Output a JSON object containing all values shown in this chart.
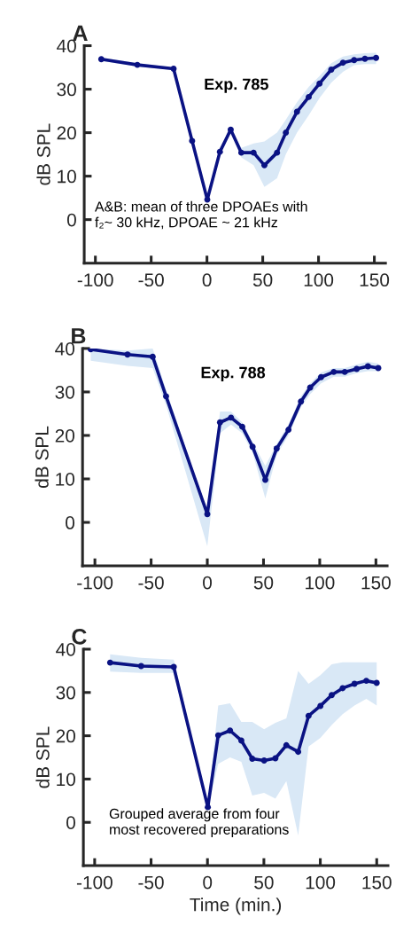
{
  "chart_data": [
    {
      "type": "line",
      "title": "A",
      "ylabel": "dB SPL",
      "xlim": [
        -110,
        160
      ],
      "ylim": [
        -10,
        40
      ],
      "xticks": [
        -100,
        -50,
        0,
        50,
        100,
        150
      ],
      "yticks": [
        0,
        10,
        20,
        30,
        40
      ],
      "grid": false,
      "legend": false,
      "marker": "circle",
      "line_style": "solid",
      "annotations": [
        "Exp. 785",
        "A&B: mean of three DPOAEs with\nf₂~ 30 kHz, DPOAE ~ 21 kHz"
      ],
      "series": [
        {
          "color": "#0a1283",
          "x": [
            -94.7,
            -62.4,
            -29.9,
            -13.3,
            0.3,
            11.6,
            21.3,
            30.8,
            41.8,
            51.5,
            62.8,
            70.7,
            80.7,
            91.2,
            100.9,
            111.4,
            121.9,
            131.9,
            141.6,
            151.6
          ],
          "values": [
            36.9,
            35.6,
            34.7,
            18.1,
            4.6,
            15.6,
            20.7,
            15.4,
            15.4,
            12.5,
            15.4,
            20.0,
            24.8,
            28.2,
            31.3,
            34.5,
            36.1,
            36.7,
            37.0,
            37.2
          ],
          "upper": [
            37.3,
            36.0,
            35.0,
            18.5,
            5.0,
            16.0,
            21.1,
            16.5,
            17.5,
            18.0,
            20.0,
            23.0,
            27.0,
            30.5,
            33.0,
            36.0,
            37.5,
            38.0,
            38.3,
            38.4
          ],
          "lower": [
            36.5,
            35.2,
            34.4,
            17.7,
            4.2,
            15.2,
            20.3,
            14.3,
            12.5,
            7.5,
            9.5,
            15.0,
            20.0,
            24.0,
            28.0,
            31.5,
            34.0,
            35.5,
            35.8,
            35.8
          ]
        }
      ]
    },
    {
      "type": "line",
      "title": "B",
      "ylabel": "dB SPL",
      "xlim": [
        -111,
        160
      ],
      "ylim": [
        -10,
        40
      ],
      "xticks": [
        -100,
        -50,
        0,
        50,
        100,
        150
      ],
      "yticks": [
        0,
        10,
        20,
        30,
        40
      ],
      "grid": false,
      "legend": false,
      "marker": "circle",
      "line_style": "solid",
      "annotations": [
        "Exp. 788"
      ],
      "series": [
        {
          "color": "#0a1283",
          "x": [
            -103.7,
            -71,
            -48.6,
            -36.7,
            0,
            11.3,
            21.1,
            31.1,
            40.3,
            51.6,
            61.7,
            72.2,
            83.3,
            91.5,
            101.2,
            112.5,
            122.3,
            132.9,
            142.9,
            152.1
          ],
          "values": [
            39.8,
            38.6,
            38.1,
            29.0,
            1.9,
            23.0,
            24.1,
            22.0,
            17.4,
            9.8,
            17.0,
            21.3,
            27.8,
            31.0,
            33.4,
            34.6,
            34.6,
            35.3,
            35.9,
            35.5
          ],
          "upper": [
            40.0,
            39.5,
            40.0,
            30.5,
            2.5,
            25.5,
            25.5,
            23.0,
            18.5,
            13.0,
            18.0,
            22.5,
            29.0,
            32.0,
            34.5,
            35.5,
            35.5,
            36.3,
            37.0,
            36.5
          ],
          "lower": [
            37.2,
            36.0,
            35.5,
            27.0,
            -5.5,
            20.5,
            22.5,
            20.5,
            16.0,
            5.5,
            15.5,
            20.0,
            26.5,
            29.5,
            32.0,
            33.5,
            33.5,
            34.3,
            34.8,
            34.8
          ]
        }
      ]
    },
    {
      "type": "line",
      "title": "C",
      "xlabel": "Time (min.)",
      "ylabel": "dB SPL",
      "xlim": [
        -110,
        160
      ],
      "ylim": [
        -10,
        40
      ],
      "xticks": [
        -100,
        -50,
        0,
        50,
        100,
        150
      ],
      "yticks": [
        0,
        10,
        20,
        30,
        40
      ],
      "grid": false,
      "legend": false,
      "marker": "circle",
      "line_style": "solid",
      "annotations": [
        "Grouped average from four\nmost recovered preparations"
      ],
      "series": [
        {
          "color": "#0a1283",
          "x": [
            -86.3,
            -58.8,
            -29.9,
            0.3,
            9.5,
            20,
            30,
            39.7,
            50.2,
            60.2,
            69.9,
            80.4,
            89.6,
            100.1,
            110.1,
            119.8,
            130.3,
            140.8,
            150
          ],
          "values": [
            36.9,
            36.1,
            35.9,
            3.5,
            20.1,
            21.2,
            18.9,
            14.7,
            14.3,
            14.8,
            17.8,
            16.3,
            24.6,
            26.9,
            29.4,
            31.0,
            32.0,
            32.7,
            32.2
          ],
          "upper": [
            38.8,
            38.0,
            37.6,
            4.0,
            27.0,
            27.5,
            23.2,
            23.2,
            21.5,
            23.0,
            24.0,
            35.0,
            32.0,
            34.0,
            36.5,
            37.0,
            37.0,
            37.0,
            37.0
          ],
          "lower": [
            34.8,
            34.5,
            34.5,
            3.0,
            13.5,
            15.0,
            14.0,
            6.2,
            6.8,
            5.5,
            9.5,
            -3.0,
            17.5,
            19.5,
            22.5,
            25.0,
            27.0,
            28.5,
            27.0
          ]
        }
      ]
    }
  ]
}
